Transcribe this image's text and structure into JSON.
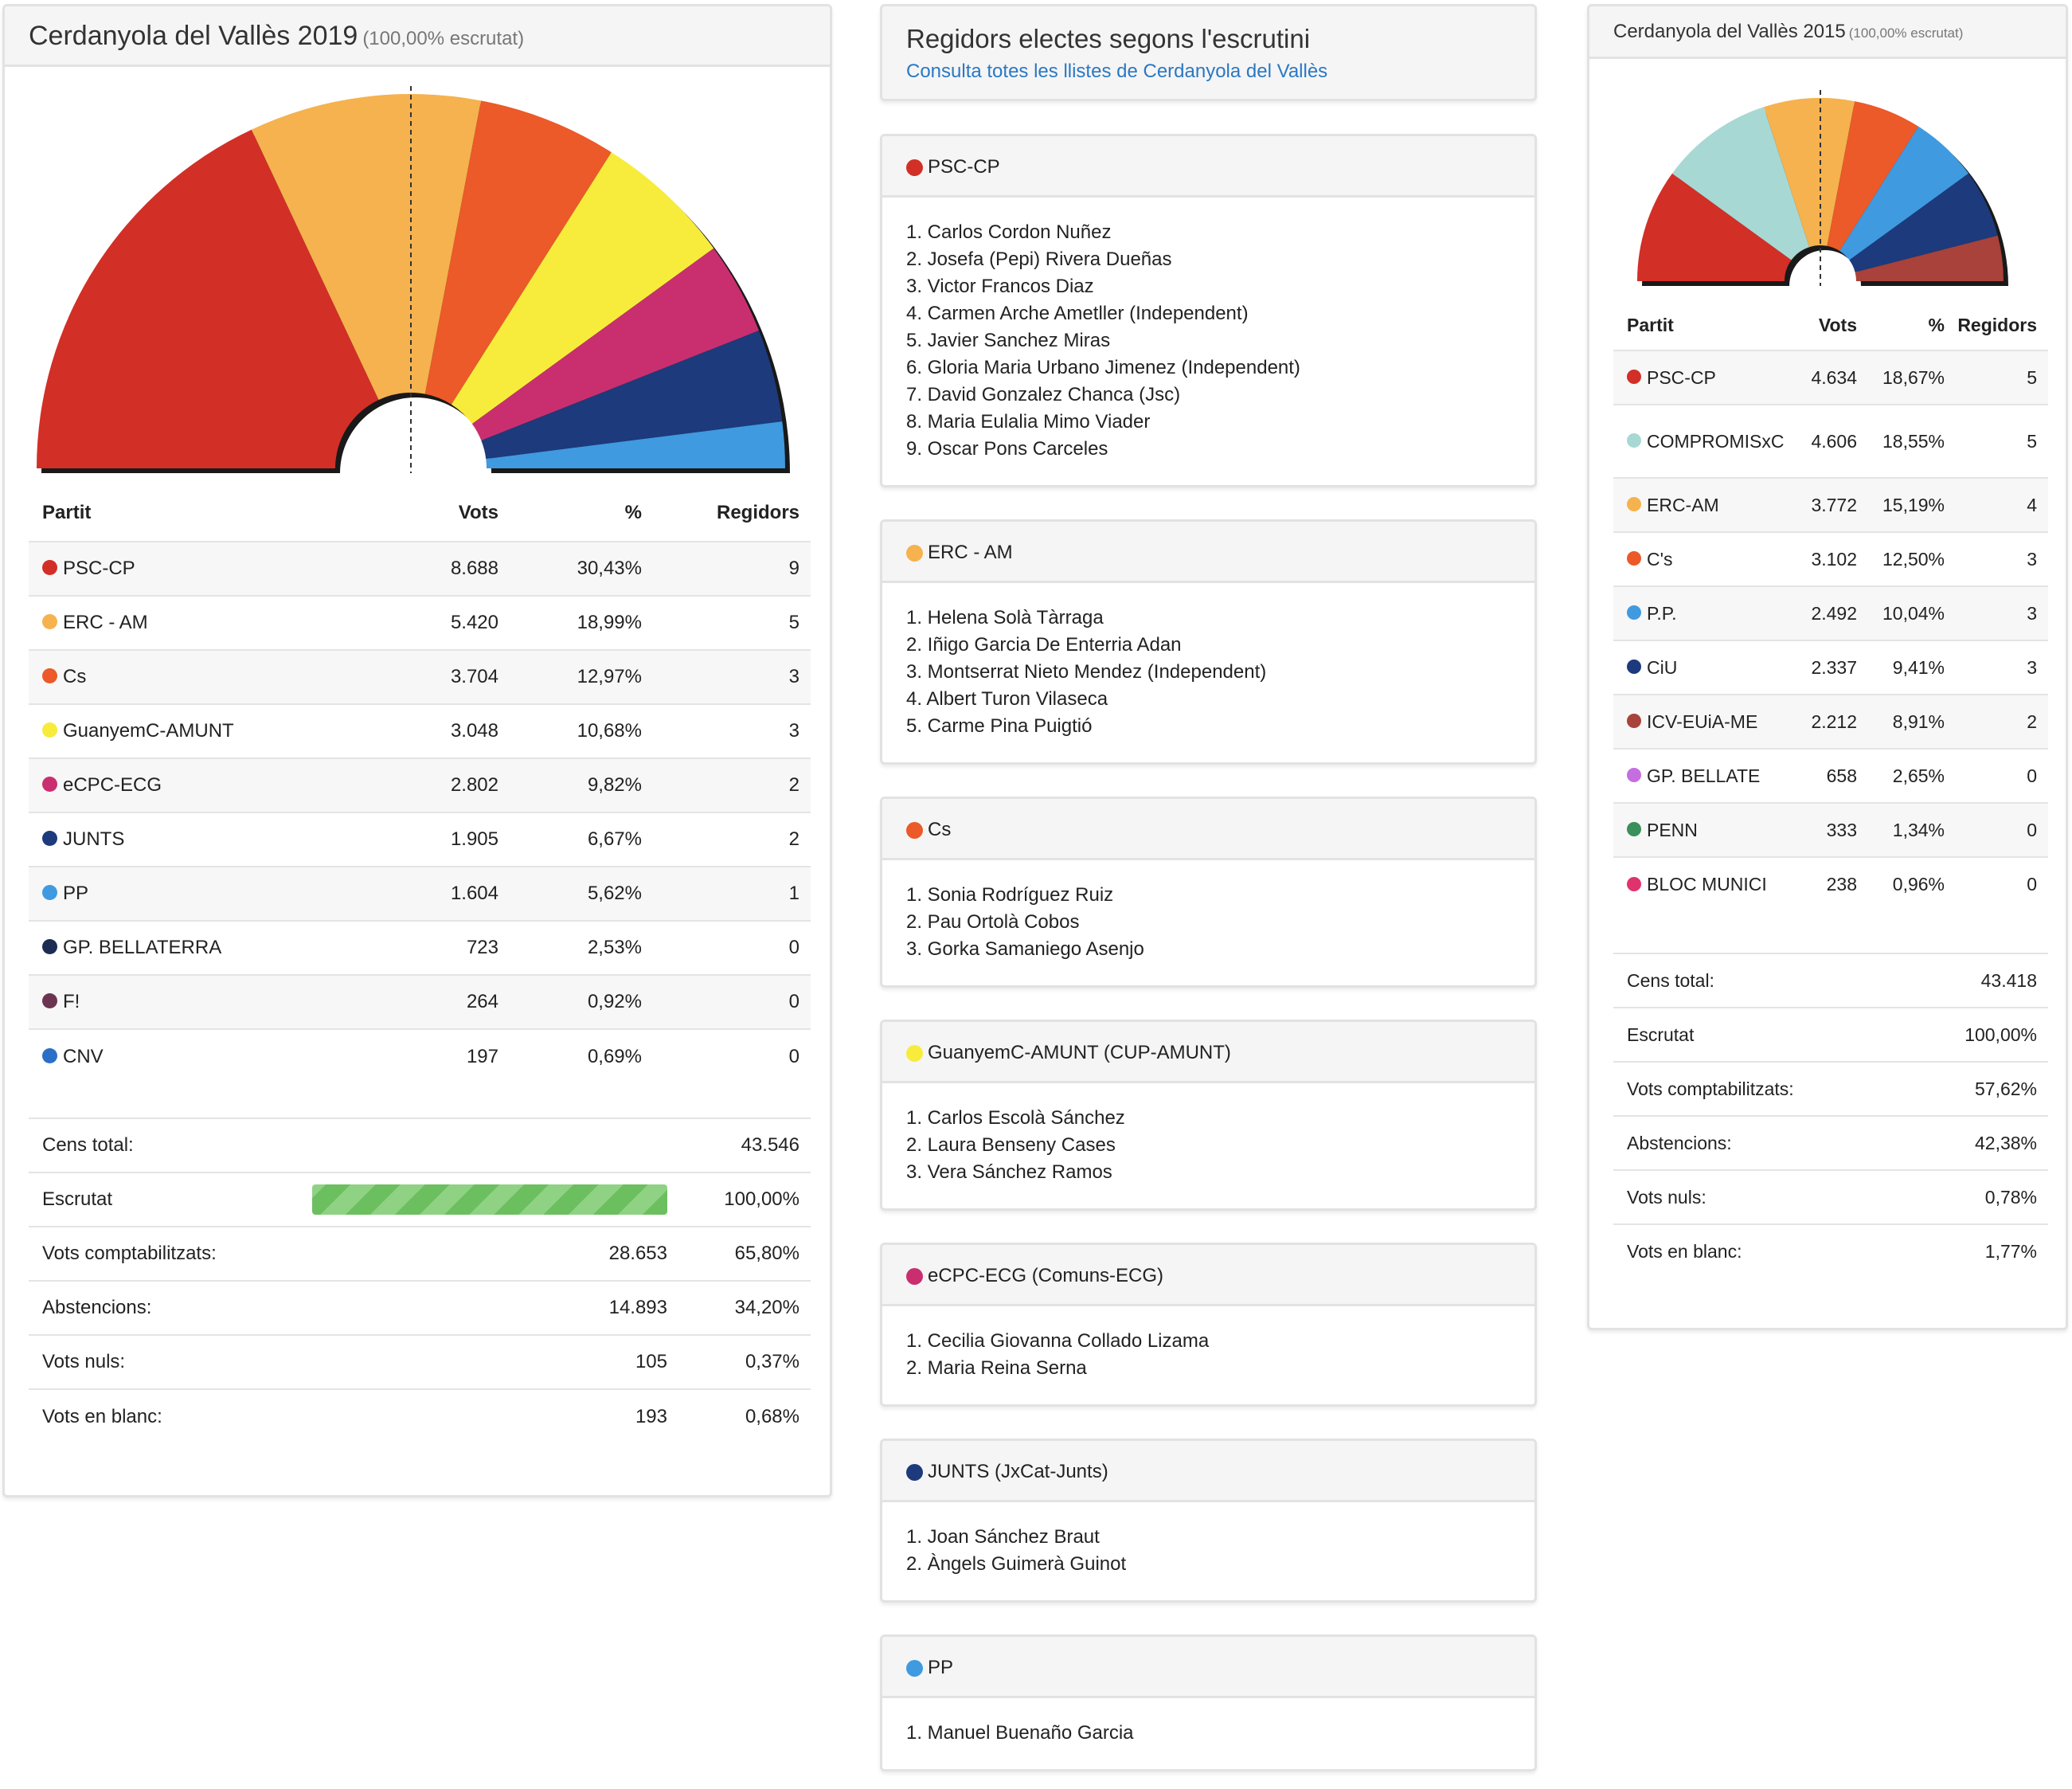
{
  "left": {
    "title": "Cerdanyola del Vallès 2019",
    "subtitle": "(100,00% escrutat)",
    "headers": {
      "party": "Partit",
      "votes": "Vots",
      "pct": "%",
      "seats": "Regidors"
    },
    "parties": [
      {
        "name": "PSC-CP",
        "votes": "8.688",
        "pct": "30,43%",
        "seats": "9",
        "color": "#d22f27"
      },
      {
        "name": "ERC - AM",
        "votes": "5.420",
        "pct": "18,99%",
        "seats": "5",
        "color": "#f5b24e"
      },
      {
        "name": "Cs",
        "votes": "3.704",
        "pct": "12,97%",
        "seats": "3",
        "color": "#eb5a28"
      },
      {
        "name": "GuanyemC-AMUNT",
        "votes": "3.048",
        "pct": "10,68%",
        "seats": "3",
        "color": "#f7ec3c"
      },
      {
        "name": "eCPC-ECG",
        "votes": "2.802",
        "pct": "9,82%",
        "seats": "2",
        "color": "#c92f6e"
      },
      {
        "name": "JUNTS",
        "votes": "1.905",
        "pct": "6,67%",
        "seats": "2",
        "color": "#1d3a7c"
      },
      {
        "name": "PP",
        "votes": "1.604",
        "pct": "5,62%",
        "seats": "1",
        "color": "#3f9ae0"
      },
      {
        "name": "GP. BELLATERRA",
        "votes": "723",
        "pct": "2,53%",
        "seats": "0",
        "color": "#1c2c52"
      },
      {
        "name": "F!",
        "votes": "264",
        "pct": "0,92%",
        "seats": "0",
        "color": "#6b3552"
      },
      {
        "name": "CNV",
        "votes": "197",
        "pct": "0,69%",
        "seats": "0",
        "color": "#2b6fc7"
      }
    ],
    "summary": {
      "cens_label": "Cens total:",
      "cens_value": "43.546",
      "escrutat_label": "Escrutat",
      "escrutat_value": "100,00%",
      "escrutat_fraction": 1.0,
      "comptabilitzats_label": "Vots comptabilitzats:",
      "comptabilitzats_votes": "28.653",
      "comptabilitzats_pct": "65,80%",
      "abstencions_label": "Abstencions:",
      "abstencions_votes": "14.893",
      "abstencions_pct": "34,20%",
      "nuls_label": "Vots nuls:",
      "nuls_votes": "105",
      "nuls_pct": "0,37%",
      "blanc_label": "Vots en blanc:",
      "blanc_votes": "193",
      "blanc_pct": "0,68%"
    }
  },
  "middle": {
    "title": "Regidors electes segons l'escrutini",
    "link": "Consulta totes les llistes de Cerdanyola del Vallès",
    "lists": [
      {
        "party": "PSC-CP",
        "color": "#d22f27",
        "members": [
          "1. Carlos Cordon Nuñez",
          "2. Josefa (Pepi) Rivera Dueñas",
          "3. Victor Francos Diaz",
          "4. Carmen Arche Ametller (Independent)",
          "5. Javier Sanchez Miras",
          "6. Gloria Maria Urbano Jimenez (Independent)",
          "7. David Gonzalez Chanca (Jsc)",
          "8. Maria Eulalia Mimo Viader",
          "9. Oscar Pons Carceles"
        ]
      },
      {
        "party": "ERC - AM",
        "color": "#f5b24e",
        "members": [
          "1. Helena Solà Tàrraga",
          "2. Iñigo Garcia De Enterria Adan",
          "3. Montserrat Nieto Mendez (Independent)",
          "4. Albert Turon Vilaseca",
          "5. Carme Pina Puigtió"
        ]
      },
      {
        "party": "Cs",
        "color": "#eb5a28",
        "members": [
          "1. Sonia Rodríguez Ruiz",
          "2. Pau Ortolà Cobos",
          "3. Gorka Samaniego Asenjo"
        ]
      },
      {
        "party": "GuanyemC-AMUNT (CUP-AMUNT)",
        "color": "#f7ec3c",
        "members": [
          "1. Carlos Escolà Sánchez",
          "2. Laura Benseny Cases",
          "3. Vera Sánchez Ramos"
        ]
      },
      {
        "party": "eCPC-ECG (Comuns-ECG)",
        "color": "#c92f6e",
        "members": [
          "1. Cecilia Giovanna Collado Lizama",
          "2. Maria Reina Serna"
        ]
      },
      {
        "party": "JUNTS (JxCat-Junts)",
        "color": "#1d3a7c",
        "members": [
          "1. Joan Sánchez Braut",
          "2. Àngels Guimerà Guinot"
        ]
      },
      {
        "party": "PP",
        "color": "#3f9ae0",
        "members": [
          "1. Manuel Buenaño Garcia"
        ]
      }
    ]
  },
  "right": {
    "title": "Cerdanyola del Vallès 2015",
    "subtitle": "(100,00% escrutat)",
    "headers": {
      "party": "Partit",
      "votes": "Vots",
      "pct": "%",
      "seats": "Regidors"
    },
    "parties": [
      {
        "name": "PSC-CP",
        "votes": "4.634",
        "pct": "18,67%",
        "seats": "5",
        "color": "#d22f27"
      },
      {
        "name": "COMPROMISxC",
        "votes": "4.606",
        "pct": "18,55%",
        "seats": "5",
        "color": "#a8d8d4"
      },
      {
        "name": "ERC-AM",
        "votes": "3.772",
        "pct": "15,19%",
        "seats": "4",
        "color": "#f5b24e"
      },
      {
        "name": "C's",
        "votes": "3.102",
        "pct": "12,50%",
        "seats": "3",
        "color": "#eb5a28"
      },
      {
        "name": "P.P.",
        "votes": "2.492",
        "pct": "10,04%",
        "seats": "3",
        "color": "#3f9ae0"
      },
      {
        "name": "CiU",
        "votes": "2.337",
        "pct": "9,41%",
        "seats": "3",
        "color": "#1d3a7c"
      },
      {
        "name": "ICV-EUiA-ME",
        "votes": "2.212",
        "pct": "8,91%",
        "seats": "2",
        "color": "#a8423a"
      },
      {
        "name": "GP. BELLATE",
        "votes": "658",
        "pct": "2,65%",
        "seats": "0",
        "color": "#c46ee0"
      },
      {
        "name": "PENN",
        "votes": "333",
        "pct": "1,34%",
        "seats": "0",
        "color": "#3a8f5a"
      },
      {
        "name": "BLOC MUNICI",
        "votes": "238",
        "pct": "0,96%",
        "seats": "0",
        "color": "#e0336e"
      }
    ],
    "summary": {
      "cens_label": "Cens total:",
      "cens_value": "43.418",
      "escrutat_label": "Escrutat",
      "escrutat_value": "100,00%",
      "comptabilitzats_label": "Vots comptabilitzats:",
      "comptabilitzats_value": "57,62%",
      "abstencions_label": "Abstencions:",
      "abstencions_value": "42,38%",
      "nuls_label": "Vots nuls:",
      "nuls_value": "0,78%",
      "blanc_label": "Vots en blanc:",
      "blanc_value": "1,77%"
    }
  }
}
